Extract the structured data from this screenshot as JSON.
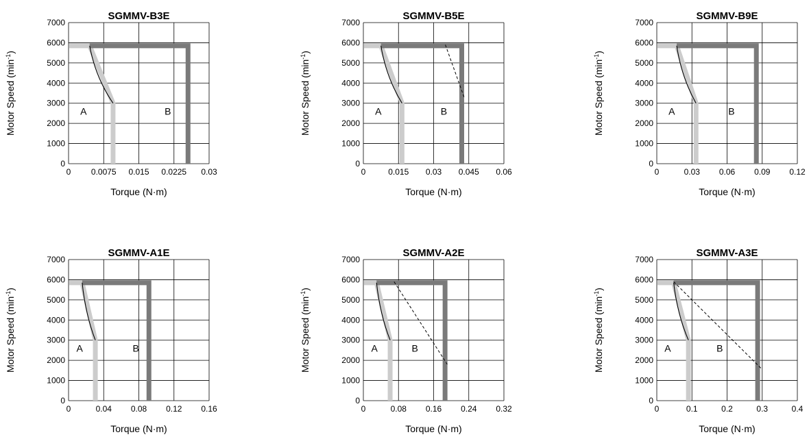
{
  "colors": {
    "grid": "#000000",
    "region_a": "#cccccc",
    "region_b": "#7a7a7a",
    "curve": "#000000"
  },
  "axis_labels": {
    "x": "Torque (N·m)",
    "y_main": "Motor Speed (min",
    "y_sup": "-1",
    "y_close": ")"
  },
  "region_labels": {
    "a": "A",
    "b": "B"
  },
  "chart_data": [
    {
      "type": "line",
      "title": "SGMMV-B3E",
      "xlim": [
        0,
        0.03
      ],
      "ylim": [
        0,
        7000
      ],
      "xticks": [
        0,
        0.0075,
        0.015,
        0.0225,
        0.03
      ],
      "xtick_labels": [
        "0",
        "0.0075",
        "0.015",
        "0.0225",
        "0.03"
      ],
      "yticks": [
        0,
        1000,
        2000,
        3000,
        4000,
        5000,
        6000,
        7000
      ],
      "ytick_labels": [
        "0",
        "1000",
        "2000",
        "3000",
        "4000",
        "5000",
        "6000",
        "7000"
      ],
      "xlabel": "Torque (N·m)",
      "ylabel": "Motor Speed (min-1)",
      "grid": true,
      "region_a": {
        "speed": 5850,
        "torque_at_max_speed": 0.0045,
        "torque_at_3000": 0.0095
      },
      "region_b": {
        "speed": 5850,
        "torque": 0.0255
      },
      "curve": {
        "start": [
          0.0045,
          5850
        ],
        "knee": [
          0.0095,
          3000
        ]
      },
      "dashed": null,
      "labels": {
        "a": [
          0.0025,
          2600
        ],
        "b": [
          0.0205,
          2600
        ]
      }
    },
    {
      "type": "line",
      "title": "SGMMV-B5E",
      "xlim": [
        0,
        0.06
      ],
      "ylim": [
        0,
        7000
      ],
      "xticks": [
        0,
        0.015,
        0.03,
        0.045,
        0.06
      ],
      "xtick_labels": [
        "0",
        "0.015",
        "0.03",
        "0.045",
        "0.06"
      ],
      "yticks": [
        0,
        1000,
        2000,
        3000,
        4000,
        5000,
        6000,
        7000
      ],
      "ytick_labels": [
        "0",
        "1000",
        "2000",
        "3000",
        "4000",
        "5000",
        "6000",
        "7000"
      ],
      "xlabel": "Torque (N·m)",
      "ylabel": "Motor Speed (min-1)",
      "grid": true,
      "region_a": {
        "speed": 5850,
        "torque_at_max_speed": 0.0075,
        "torque_at_3000": 0.0165
      },
      "region_b": {
        "speed": 5850,
        "torque": 0.042
      },
      "curve": {
        "start": [
          0.0075,
          5850
        ],
        "knee": [
          0.0165,
          3000
        ]
      },
      "dashed": [
        [
          0.035,
          5900
        ],
        [
          0.043,
          3300
        ]
      ],
      "labels": {
        "a": [
          0.005,
          2600
        ],
        "b": [
          0.033,
          2600
        ]
      }
    },
    {
      "type": "line",
      "title": "SGMMV-B9E",
      "xlim": [
        0,
        0.12
      ],
      "ylim": [
        0,
        7000
      ],
      "xticks": [
        0,
        0.03,
        0.06,
        0.09,
        0.12
      ],
      "xtick_labels": [
        "0",
        "0.03",
        "0.06",
        "0.09",
        "0.12"
      ],
      "yticks": [
        0,
        1000,
        2000,
        3000,
        4000,
        5000,
        6000,
        7000
      ],
      "ytick_labels": [
        "0",
        "1000",
        "2000",
        "3000",
        "4000",
        "5000",
        "6000",
        "7000"
      ],
      "xlabel": "Torque (N·m)",
      "ylabel": "Motor Speed (min-1)",
      "grid": true,
      "region_a": {
        "speed": 5850,
        "torque_at_max_speed": 0.017,
        "torque_at_3000": 0.0335
      },
      "region_b": {
        "speed": 5850,
        "torque": 0.085
      },
      "curve": {
        "start": [
          0.017,
          5850
        ],
        "knee": [
          0.0335,
          3000
        ]
      },
      "dashed": null,
      "labels": {
        "a": [
          0.01,
          2600
        ],
        "b": [
          0.061,
          2600
        ]
      }
    },
    {
      "type": "line",
      "title": "SGMMV-A1E",
      "xlim": [
        0,
        0.16
      ],
      "ylim": [
        0,
        7000
      ],
      "xticks": [
        0,
        0.04,
        0.08,
        0.12,
        0.16
      ],
      "xtick_labels": [
        "0",
        "0.04",
        "0.08",
        "0.12",
        "0.16"
      ],
      "yticks": [
        0,
        1000,
        2000,
        3000,
        4000,
        5000,
        6000,
        7000
      ],
      "ytick_labels": [
        "0",
        "1000",
        "2000",
        "3000",
        "4000",
        "5000",
        "6000",
        "7000"
      ],
      "xlabel": "Torque (N·m)",
      "ylabel": "Motor Speed (min-1)",
      "grid": true,
      "region_a": {
        "speed": 5850,
        "torque_at_max_speed": 0.0155,
        "torque_at_3000": 0.0305
      },
      "region_b": {
        "speed": 5850,
        "torque": 0.0915
      },
      "curve": {
        "start": [
          0.0155,
          5850
        ],
        "knee": [
          0.0305,
          3000
        ]
      },
      "dashed": null,
      "labels": {
        "a": [
          0.009,
          2600
        ],
        "b": [
          0.073,
          2600
        ]
      }
    },
    {
      "type": "line",
      "title": "SGMMV-A2E",
      "xlim": [
        0,
        0.32
      ],
      "ylim": [
        0,
        7000
      ],
      "xticks": [
        0,
        0.08,
        0.16,
        0.24,
        0.32
      ],
      "xtick_labels": [
        "0",
        "0.08",
        "0.16",
        "0.24",
        "0.32"
      ],
      "yticks": [
        0,
        1000,
        2000,
        3000,
        4000,
        5000,
        6000,
        7000
      ],
      "ytick_labels": [
        "0",
        "1000",
        "2000",
        "3000",
        "4000",
        "5000",
        "6000",
        "7000"
      ],
      "xlabel": "Torque (N·m)",
      "ylabel": "Motor Speed (min-1)",
      "grid": true,
      "region_a": {
        "speed": 5850,
        "torque_at_max_speed": 0.03,
        "torque_at_3000": 0.061
      },
      "region_b": {
        "speed": 5850,
        "torque": 0.186
      },
      "curve": {
        "start": [
          0.03,
          5850
        ],
        "knee": [
          0.061,
          3000
        ]
      },
      "dashed": [
        [
          0.07,
          5900
        ],
        [
          0.191,
          1800
        ]
      ],
      "labels": {
        "a": [
          0.018,
          2600
        ],
        "b": [
          0.11,
          2600
        ]
      }
    },
    {
      "type": "line",
      "title": "SGMMV-A3E",
      "xlim": [
        0,
        0.4
      ],
      "ylim": [
        0,
        7000
      ],
      "xticks": [
        0,
        0.1,
        0.2,
        0.3,
        0.4
      ],
      "xtick_labels": [
        "0",
        "0.1",
        "0.2",
        "0.3",
        "0.4"
      ],
      "yticks": [
        0,
        1000,
        2000,
        3000,
        4000,
        5000,
        6000,
        7000
      ],
      "ytick_labels": [
        "0",
        "1000",
        "2000",
        "3000",
        "4000",
        "5000",
        "6000",
        "7000"
      ],
      "xlabel": "Torque (N·m)",
      "ylabel": "Motor Speed (min-1)",
      "grid": true,
      "region_a": {
        "speed": 5850,
        "torque_at_max_speed": 0.048,
        "torque_at_3000": 0.09
      },
      "region_b": {
        "speed": 5850,
        "torque": 0.287
      },
      "curve": {
        "start": [
          0.048,
          5850
        ],
        "knee": [
          0.09,
          3000
        ]
      },
      "dashed": [
        [
          0.048,
          5900
        ],
        [
          0.297,
          1600
        ]
      ],
      "labels": {
        "a": [
          0.022,
          2600
        ],
        "b": [
          0.17,
          2600
        ]
      }
    }
  ]
}
